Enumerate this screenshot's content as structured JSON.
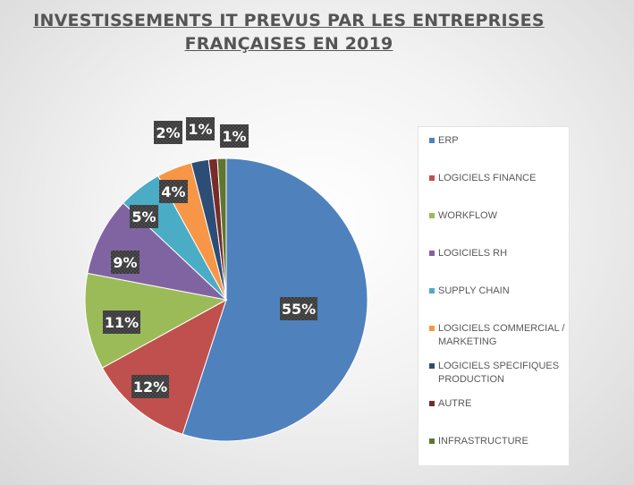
{
  "title_lines": [
    "INVESTISSEMENTS IT PREVUS PAR LES ENTREPRISES",
    "FRANÇAISES EN 2019"
  ],
  "chart_data": {
    "type": "pie",
    "title": "INVESTISSEMENTS IT PREVUS PAR LES ENTREPRISES FRANÇAISES EN 2019",
    "legend_position": "right",
    "slices": [
      {
        "label": "ERP",
        "value": 55,
        "display": "55%",
        "color": "#4F81BD"
      },
      {
        "label": "LOGICIELS FINANCE",
        "value": 12,
        "display": "12%",
        "color": "#C0504D"
      },
      {
        "label": "WORKFLOW",
        "value": 11,
        "display": "11%",
        "color": "#9BBB59"
      },
      {
        "label": "LOGICIELS RH",
        "value": 9,
        "display": "9%",
        "color": "#8064A2"
      },
      {
        "label": "SUPPLY CHAIN",
        "value": 5,
        "display": "5%",
        "color": "#4BACC6"
      },
      {
        "label": "LOGICIELS COMMERCIAL / MARKETING",
        "value": 4,
        "display": "4%",
        "color": "#F79646"
      },
      {
        "label": "LOGICIELS SPECIFIQUES PRODUCTION",
        "value": 2,
        "display": "2%",
        "color": "#2C4D75"
      },
      {
        "label": "AUTRE",
        "value": 1,
        "display": "1%",
        "color": "#772C2A"
      },
      {
        "label": "INFRASTRUCTURE",
        "value": 1,
        "display": "1%",
        "color": "#5F7530"
      }
    ]
  }
}
